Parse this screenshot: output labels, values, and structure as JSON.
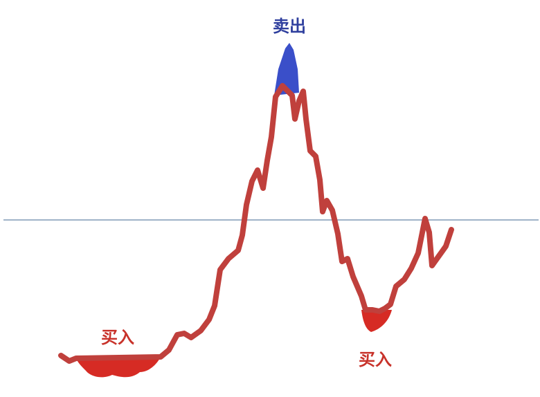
{
  "labels": {
    "sell": "卖出",
    "buy_left": "买入",
    "buy_right": "买入"
  },
  "colors": {
    "price_line": "#c0403c",
    "baseline": "#9fb3c8",
    "sell_fill": "#3a4fc9",
    "sell_text": "#2f3f9e",
    "buy_fill": "#d62b24",
    "buy_text": "#c8322a",
    "background": "#ffffff"
  }
}
